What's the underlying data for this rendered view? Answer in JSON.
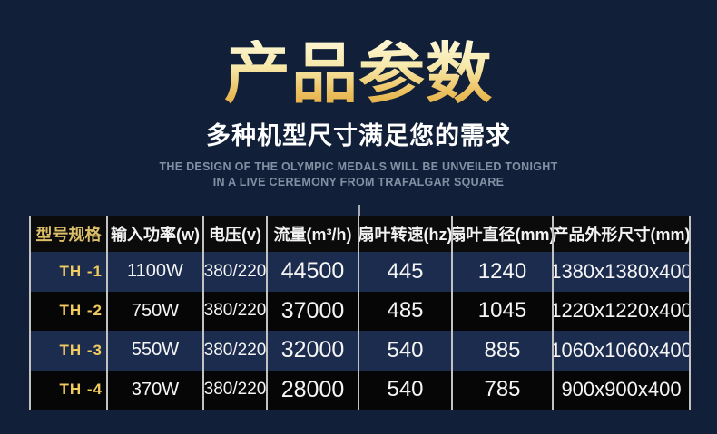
{
  "page": {
    "background_color": "#112038"
  },
  "colors": {
    "title_gradient_top": "#fdf6d4",
    "title_gradient_bottom": "#e2aa40",
    "subtitle_text": "#ffffff",
    "english_text": "#8390a3",
    "gold_accent": "#f2cb5f",
    "row_navy": "#1c2c4e",
    "row_black": "#060606",
    "header_black": "#0b0b0b",
    "separator_gray": "#c2c2c2"
  },
  "header": {
    "title": "产品参数",
    "subtitle": "多种机型尺寸满足您的需求",
    "desc_line1": "THE DESIGN OF THE OLYMPIC MEDALS WILL BE UNVEILED TONIGHT",
    "desc_line2": "IN A LIVE CEREMONY FROM TRAFALGAR SQUARE"
  },
  "table": {
    "columns": [
      "型号规格",
      "输入功率(w)",
      "电压(v)",
      "流量(m³/h)",
      "扇叶转速(hz)",
      "扇叶直径(mm)",
      "产品外形尺寸(mm)"
    ],
    "rows": [
      {
        "model": "TH -1",
        "power": "1100W",
        "voltage": "380/220",
        "flow": "44500",
        "speed": "445",
        "diameter": "1240",
        "dimensions": "1380x1380x400"
      },
      {
        "model": "TH -2",
        "power": "750W",
        "voltage": "380/220",
        "flow": "37000",
        "speed": "485",
        "diameter": "1045",
        "dimensions": "1220x1220x400"
      },
      {
        "model": "TH -3",
        "power": "550W",
        "voltage": "380/220",
        "flow": "32000",
        "speed": "540",
        "diameter": "885",
        "dimensions": "1060x1060x400"
      },
      {
        "model": "TH -4",
        "power": "370W",
        "voltage": "380/220",
        "flow": "28000",
        "speed": "540",
        "diameter": "785",
        "dimensions": "900x900x400"
      }
    ]
  }
}
